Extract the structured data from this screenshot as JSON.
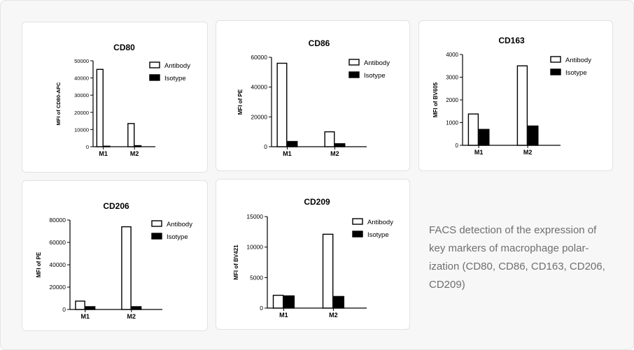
{
  "caption": "FACS detection of the expression of key markers of macrophage polarization (CD80, CD86, CD163, CD206, CD209)",
  "caption_lines": [
    "FACS detection of the expression of",
    "key markers of macrophage polar-",
    "ization (CD80, CD86, CD163, CD206,",
    "CD209)"
  ],
  "colors": {
    "antibody_fill": "#ffffff",
    "isotype_fill": "#000000",
    "axis": "#000000",
    "caption": "#6f6f6f"
  },
  "chart_data": [
    {
      "type": "bar",
      "title": "CD80",
      "ylabel": "MFI of CD80-APC",
      "categories": [
        "M1",
        "M2"
      ],
      "ylim": [
        0,
        50000
      ],
      "yticks": [
        "0",
        "10000",
        "20000",
        "30000",
        "40000",
        "50000"
      ],
      "series": [
        {
          "name": "Antibody",
          "values": [
            45000,
            13500
          ]
        },
        {
          "name": "Isotype",
          "values": [
            300,
            600
          ]
        }
      ],
      "legend": "top-right"
    },
    {
      "type": "bar",
      "title": "CD86",
      "ylabel": "MFI of PE",
      "categories": [
        "M1",
        "M2"
      ],
      "ylim": [
        0,
        60000
      ],
      "yticks": [
        "0",
        "20000",
        "40000",
        "60000"
      ],
      "series": [
        {
          "name": "Antibody",
          "values": [
            56000,
            10000
          ]
        },
        {
          "name": "Isotype",
          "values": [
            3500,
            2000
          ]
        }
      ],
      "legend": "top-right"
    },
    {
      "type": "bar",
      "title": "CD163",
      "ylabel": "MFI of BV605",
      "categories": [
        "M1",
        "M2"
      ],
      "ylim": [
        0,
        4000
      ],
      "yticks": [
        "0",
        "1000",
        "2000",
        "3000",
        "4000"
      ],
      "series": [
        {
          "name": "Antibody",
          "values": [
            1380,
            3500
          ]
        },
        {
          "name": "Isotype",
          "values": [
            700,
            850
          ]
        }
      ],
      "legend": "top-right"
    },
    {
      "type": "bar",
      "title": "CD206",
      "ylabel": "MFI of PE",
      "categories": [
        "M1",
        "M2"
      ],
      "ylim": [
        0,
        80000
      ],
      "yticks": [
        "0",
        "20000",
        "40000",
        "60000",
        "80000"
      ],
      "series": [
        {
          "name": "Antibody",
          "values": [
            7500,
            74000
          ]
        },
        {
          "name": "Isotype",
          "values": [
            2500,
            2500
          ]
        }
      ],
      "legend": "top-right"
    },
    {
      "type": "bar",
      "title": "CD209",
      "ylabel": "MFI of BV421",
      "categories": [
        "M1",
        "M2"
      ],
      "ylim": [
        0,
        15000
      ],
      "yticks": [
        "0",
        "5000",
        "10000",
        "15000"
      ],
      "series": [
        {
          "name": "Antibody",
          "values": [
            2100,
            12100
          ]
        },
        {
          "name": "Isotype",
          "values": [
            2000,
            1900
          ]
        }
      ],
      "legend": "top-right"
    }
  ]
}
